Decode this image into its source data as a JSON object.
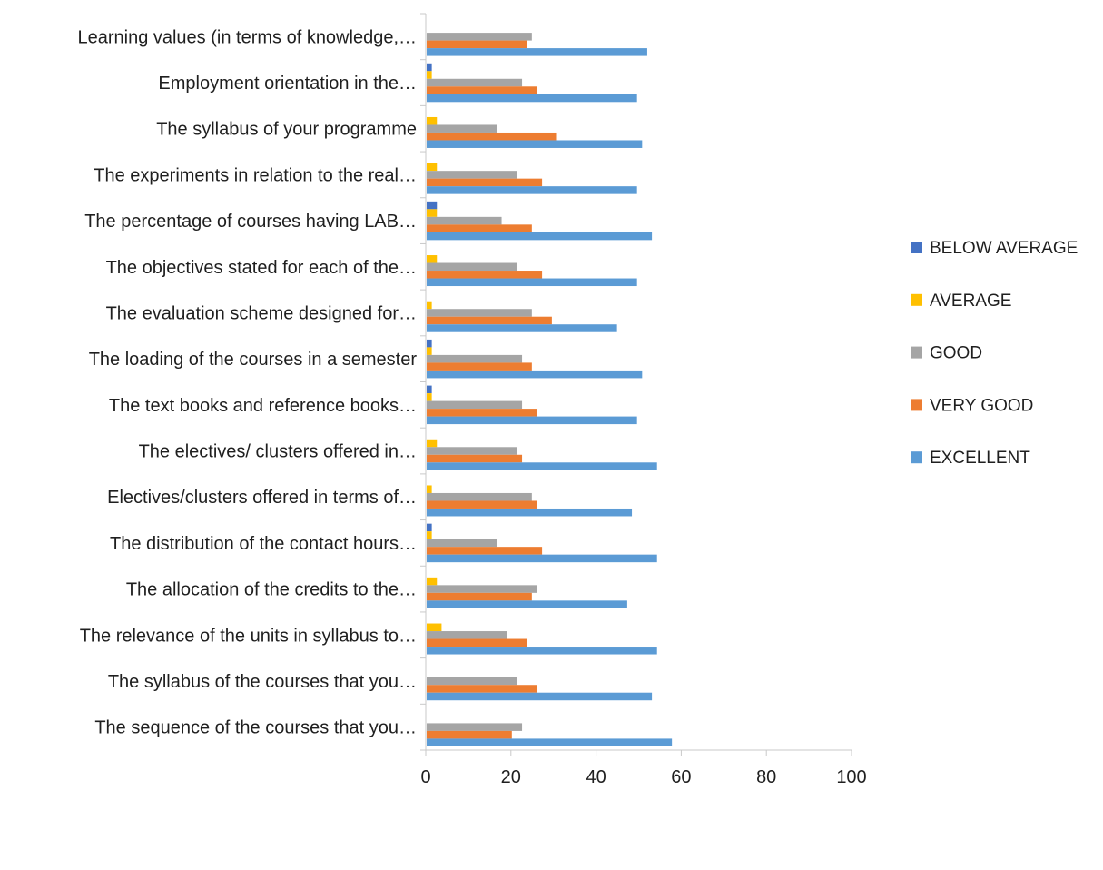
{
  "chart_data": {
    "type": "bar",
    "orientation": "horizontal",
    "categories": [
      "Learning values (in terms of knowledge,…",
      "Employment orientation in the…",
      "The syllabus of your programme",
      "The experiments in relation to the real…",
      "The percentage of courses having LAB…",
      "The objectives stated for each of the…",
      "The evaluation scheme designed for…",
      "The loading of the courses in a semester",
      "The text books and reference books…",
      "The electives/ clusters offered in…",
      "Electives/clusters offered in terms of…",
      "The distribution of the contact hours…",
      "The allocation of the credits to the…",
      "The relevance of the units in syllabus to…",
      "The syllabus of the courses that you…",
      "The sequence of the courses that you…"
    ],
    "series": [
      {
        "name": "BELOW AVERAGE",
        "color": "#4472c4",
        "values": [
          0,
          1.2,
          0,
          0,
          2.4,
          0,
          0,
          1.2,
          1.2,
          0,
          0,
          1.2,
          0,
          0,
          0,
          0
        ]
      },
      {
        "name": "AVERAGE",
        "color": "#ffc000",
        "values": [
          0,
          1.2,
          2.4,
          2.4,
          2.4,
          2.4,
          1.2,
          1.2,
          1.2,
          2.4,
          1.2,
          1.2,
          2.4,
          3.5,
          0,
          0
        ]
      },
      {
        "name": "GOOD",
        "color": "#a5a5a5",
        "values": [
          24.7,
          22.4,
          16.5,
          21.2,
          17.6,
          21.2,
          24.7,
          22.4,
          22.4,
          21.2,
          24.7,
          16.5,
          25.9,
          18.8,
          21.2,
          22.4
        ]
      },
      {
        "name": "VERY GOOD",
        "color": "#ed7d31",
        "values": [
          23.5,
          25.9,
          30.6,
          27.1,
          24.7,
          27.1,
          29.4,
          24.7,
          25.9,
          22.4,
          25.9,
          27.1,
          24.7,
          23.5,
          25.9,
          20.0
        ]
      },
      {
        "name": "EXCELLENT",
        "color": "#5b9bd5",
        "values": [
          51.8,
          49.4,
          50.6,
          49.4,
          52.9,
          49.4,
          44.7,
          50.6,
          49.4,
          54.1,
          48.2,
          54.1,
          47.1,
          54.1,
          52.9,
          57.6
        ]
      }
    ],
    "xlim": [
      0,
      100
    ],
    "xticks": [
      "0",
      "20",
      "40",
      "60",
      "80",
      "100"
    ],
    "legend_position": "right",
    "legend_order": [
      "BELOW AVERAGE",
      "AVERAGE",
      "GOOD",
      "VERY GOOD",
      "EXCELLENT"
    ],
    "grid": false,
    "title": "",
    "xlabel": "",
    "ylabel": ""
  }
}
